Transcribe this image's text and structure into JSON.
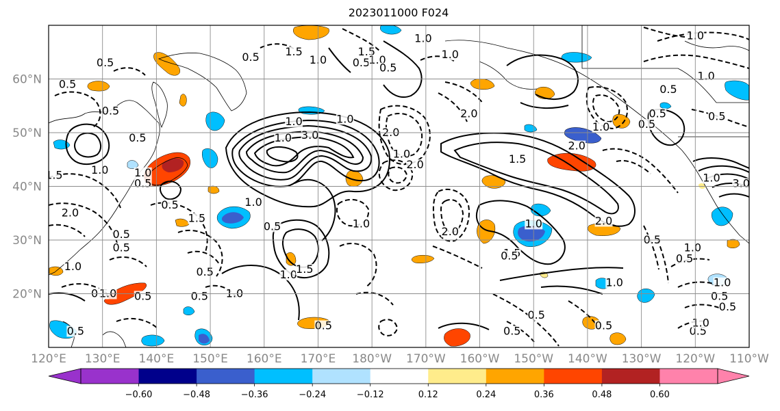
{
  "title": "2023011000 F024",
  "map": {
    "lon_ticks": [
      "120°E",
      "130°E",
      "140°E",
      "150°E",
      "160°E",
      "170°E",
      "180°W",
      "170°W",
      "160°W",
      "150°W",
      "140°W",
      "130°W",
      "120°W",
      "110°W"
    ],
    "lat_ticks": [
      "60°N",
      "50°N",
      "40°N",
      "30°N",
      "20°N"
    ],
    "lon_range": [
      120,
      250
    ],
    "lat_range": [
      10,
      70
    ]
  },
  "colorbar": {
    "ticks": [
      "−0.60",
      "−0.48",
      "−0.36",
      "−0.24",
      "−0.12",
      "0.12",
      "0.24",
      "0.36",
      "0.48",
      "0.60"
    ],
    "colors": [
      "#9932cc",
      "#00008b",
      "#3a5fcd",
      "#00bfff",
      "#b0e2ff",
      "#ffffff",
      "#ffec8b",
      "#ffa500",
      "#ff4500",
      "#b22222",
      "#ff82ab"
    ]
  },
  "fill_colors": {
    "neg_strong": "#3a5fcd",
    "neg_mid": "#00bfff",
    "neg_weak": "#b0e2ff",
    "pos_weak": "#ffec8b",
    "pos_mid": "#ffa500",
    "pos_strong": "#ff4500"
  },
  "contour_labels": [
    {
      "text": "0.5",
      "lon": 130.5,
      "lat": 62.5
    },
    {
      "text": "0.5",
      "lon": 123.5,
      "lat": 58.5
    },
    {
      "text": "0.5",
      "lon": 131.5,
      "lat": 53.5
    },
    {
      "text": "0.5",
      "lon": 136.5,
      "lat": 48.5
    },
    {
      "text": "1.0",
      "lon": 129.5,
      "lat": 42.5
    },
    {
      "text": "1.5",
      "lon": 121.0,
      "lat": 41.5
    },
    {
      "text": "0.5",
      "lon": 137.5,
      "lat": 40.0
    },
    {
      "text": "1.0",
      "lon": 137.5,
      "lat": 42.0
    },
    {
      "text": "0.5",
      "lon": 142.5,
      "lat": 36.0
    },
    {
      "text": "2.0",
      "lon": 124.0,
      "lat": 34.5
    },
    {
      "text": "0.5",
      "lon": 133.5,
      "lat": 30.5
    },
    {
      "text": "0.5",
      "lon": 133.5,
      "lat": 28.0
    },
    {
      "text": "1.0",
      "lon": 124.5,
      "lat": 24.5
    },
    {
      "text": "1.5",
      "lon": 147.5,
      "lat": 33.5
    },
    {
      "text": "1.0",
      "lon": 158.0,
      "lat": 36.5
    },
    {
      "text": "0.5",
      "lon": 161.5,
      "lat": 32.0
    },
    {
      "text": "0.5",
      "lon": 148.0,
      "lat": 19.0
    },
    {
      "text": "0.5",
      "lon": 149.0,
      "lat": 23.5
    },
    {
      "text": "1.0",
      "lon": 154.5,
      "lat": 19.5
    },
    {
      "text": "1.0",
      "lon": 164.5,
      "lat": 23.0
    },
    {
      "text": "1.5",
      "lon": 167.5,
      "lat": 24.0
    },
    {
      "text": "0.5",
      "lon": 171.0,
      "lat": 13.5
    },
    {
      "text": "0.5",
      "lon": 125.0,
      "lat": 12.5
    },
    {
      "text": "0.5",
      "lon": 129.5,
      "lat": 19.5
    },
    {
      "text": "1.0",
      "lon": 131.0,
      "lat": 19.5
    },
    {
      "text": "0.5",
      "lon": 137.5,
      "lat": 19.0
    },
    {
      "text": "1.5",
      "lon": 165.5,
      "lat": 64.5
    },
    {
      "text": "0.5",
      "lon": 157.5,
      "lat": 63.5
    },
    {
      "text": "1.0",
      "lon": 170.0,
      "lat": 63.0
    },
    {
      "text": "0.5",
      "lon": 178.0,
      "lat": 62.5
    },
    {
      "text": "1.5",
      "lon": 179.0,
      "lat": 64.5
    },
    {
      "text": "1.0",
      "lon": 181.0,
      "lat": 63.0
    },
    {
      "text": "0.5",
      "lon": 183.0,
      "lat": 61.5
    },
    {
      "text": "1.0",
      "lon": 194.5,
      "lat": 64.0
    },
    {
      "text": "1.0",
      "lon": 189.5,
      "lat": 67.0
    },
    {
      "text": "2.0",
      "lon": 198.0,
      "lat": 53.0
    },
    {
      "text": "1.0",
      "lon": 175.0,
      "lat": 52.0
    },
    {
      "text": "1.0",
      "lon": 165.5,
      "lat": 51.5
    },
    {
      "text": "1.0",
      "lon": 163.5,
      "lat": 48.5
    },
    {
      "text": "3.0",
      "lon": 168.5,
      "lat": 49.0
    },
    {
      "text": "2.0",
      "lon": 183.5,
      "lat": 49.5
    },
    {
      "text": "1.0",
      "lon": 185.5,
      "lat": 45.5
    },
    {
      "text": "2.0",
      "lon": 188.0,
      "lat": 43.5
    },
    {
      "text": "1.0",
      "lon": 178.0,
      "lat": 32.5
    },
    {
      "text": "2.0",
      "lon": 194.5,
      "lat": 31.0
    },
    {
      "text": "1.5",
      "lon": 207.0,
      "lat": 44.5
    },
    {
      "text": "2.0",
      "lon": 218.0,
      "lat": 47.0
    },
    {
      "text": "1.0",
      "lon": 222.5,
      "lat": 50.5
    },
    {
      "text": "1.0",
      "lon": 210.0,
      "lat": 32.5
    },
    {
      "text": "1.5",
      "lon": 206.0,
      "lat": 27.0
    },
    {
      "text": "2.0",
      "lon": 223.0,
      "lat": 33.0
    },
    {
      "text": "0.5",
      "lon": 205.5,
      "lat": 26.5
    },
    {
      "text": "0.5",
      "lon": 232.0,
      "lat": 29.5
    },
    {
      "text": "1.0",
      "lon": 225.0,
      "lat": 21.5
    },
    {
      "text": "0.5",
      "lon": 206.0,
      "lat": 12.5
    },
    {
      "text": "0.5",
      "lon": 210.5,
      "lat": 15.5
    },
    {
      "text": "0.5",
      "lon": 223.0,
      "lat": 13.5
    },
    {
      "text": "0.5",
      "lon": 233.0,
      "lat": 53.0
    },
    {
      "text": "0.5",
      "lon": 235.0,
      "lat": 57.5
    },
    {
      "text": "1.0",
      "lon": 242.0,
      "lat": 60.0
    },
    {
      "text": "0.5",
      "lon": 244.0,
      "lat": 52.5
    },
    {
      "text": "1.0",
      "lon": 240.0,
      "lat": 67.5
    },
    {
      "text": "0.5",
      "lon": 231.0,
      "lat": 51.0
    },
    {
      "text": "0.5",
      "lon": 238.0,
      "lat": 26.0
    },
    {
      "text": "1.0",
      "lon": 239.5,
      "lat": 28.0
    },
    {
      "text": "0.5",
      "lon": 244.5,
      "lat": 19.0
    },
    {
      "text": "1.0",
      "lon": 245.0,
      "lat": 21.5
    },
    {
      "text": "0.5",
      "lon": 240.5,
      "lat": 12.5
    },
    {
      "text": "1.0",
      "lon": 241.0,
      "lat": 14.0
    },
    {
      "text": "0.5",
      "lon": 246.0,
      "lat": 17.0
    },
    {
      "text": "3.0",
      "lon": 248.5,
      "lat": 40.0
    },
    {
      "text": "1.0",
      "lon": 243.0,
      "lat": 41.0
    }
  ]
}
